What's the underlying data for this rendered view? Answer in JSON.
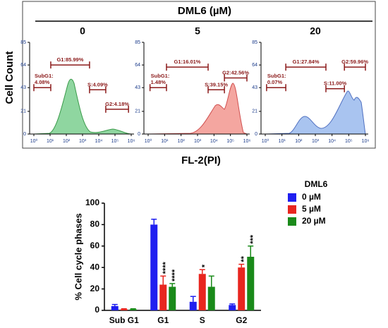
{
  "chart_data": [
    {
      "type": "flow-histograms",
      "title": "DML6 (µM)",
      "xlabel": "FL-2(PI)",
      "ylabel": "Cell Count",
      "ylim": [
        0,
        85
      ],
      "yticks": [
        0,
        21,
        43,
        64,
        85
      ],
      "xlim": [
        1,
        1000000
      ],
      "log_x": true,
      "xticks": [
        {
          "value": 1,
          "label": "10⁰"
        },
        {
          "value": 10,
          "label": "10¹"
        },
        {
          "value": 100,
          "label": "10²"
        },
        {
          "value": 1000,
          "label": "10³"
        },
        {
          "value": 10000,
          "label": "10⁴"
        },
        {
          "value": 100000,
          "label": "10⁵"
        },
        {
          "value": 1000000,
          "label": "10⁶"
        }
      ],
      "gate_color": "#8b1a1a",
      "panels": [
        {
          "title": "0",
          "color": "#8fd6a0",
          "gates": [
            {
              "lines": [
                "SubG1:",
                "4.08%"
              ],
              "range": [
                1,
                11
              ],
              "y": 43
            },
            {
              "lines": [
                "G1:85.99%"
              ],
              "range": [
                11,
                2700
              ],
              "y": 64
            },
            {
              "lines": [
                "S:4.09%"
              ],
              "range": [
                2700,
                27000
              ],
              "y": 41
            },
            {
              "lines": [
                "G2:4.18%"
              ],
              "range": [
                27000,
                680000
              ],
              "y": 23
            }
          ]
        },
        {
          "title": "5",
          "color": "#f4a6a0",
          "gates": [
            {
              "lines": [
                "SubG1:",
                "1.48%"
              ],
              "range": [
                1.3,
                13
              ],
              "y": 43
            },
            {
              "lines": [
                "G1:16.01%"
              ],
              "range": [
                13,
                4400
              ],
              "y": 62
            },
            {
              "lines": [
                "S:39.15%"
              ],
              "range": [
                4400,
                43000
              ],
              "y": 41
            },
            {
              "lines": [
                "G2:42.56%"
              ],
              "range": [
                43000,
                1000000
              ],
              "y": 52
            }
          ]
        },
        {
          "title": "20",
          "color": "#a9c4f0",
          "gates": [
            {
              "lines": [
                "SubG1:",
                "0.07%"
              ],
              "range": [
                1.2,
                17
              ],
              "y": 43
            },
            {
              "lines": [
                "G1:27.84%"
              ],
              "range": [
                17,
                4300
              ],
              "y": 62
            },
            {
              "lines": [
                "S:11.00%"
              ],
              "range": [
                4300,
                55000
              ],
              "y": 42
            },
            {
              "lines": [
                "G2:59.96%"
              ],
              "range": [
                55000,
                1000000
              ],
              "y": 62
            }
          ]
        }
      ]
    },
    {
      "type": "bar",
      "ylabel": "% Cell cycle phases",
      "legend_title": "DML6",
      "categories": [
        "Sub G1",
        "G1",
        "S",
        "G2"
      ],
      "ylim": [
        0,
        100
      ],
      "yticks": [
        0,
        20,
        40,
        60,
        80,
        100
      ],
      "series": [
        {
          "name": "0 µM",
          "color": "#1f1ff0",
          "values": [
            4,
            80,
            8,
            5
          ],
          "errors": [
            1.5,
            5,
            5,
            1
          ],
          "annotations": [
            null,
            null,
            null,
            null
          ]
        },
        {
          "name": "5 µM",
          "color": "#e8261f",
          "values": [
            1,
            24,
            34,
            40
          ],
          "errors": [
            0.5,
            8,
            4,
            3
          ],
          "annotations": [
            null,
            "****",
            "*",
            "**"
          ]
        },
        {
          "name": "20 µM",
          "color": "#1a8a1a",
          "values": [
            1,
            22,
            22,
            50
          ],
          "errors": [
            0.5,
            3,
            10,
            10
          ],
          "annotations": [
            null,
            "****",
            null,
            "***"
          ]
        }
      ]
    }
  ]
}
